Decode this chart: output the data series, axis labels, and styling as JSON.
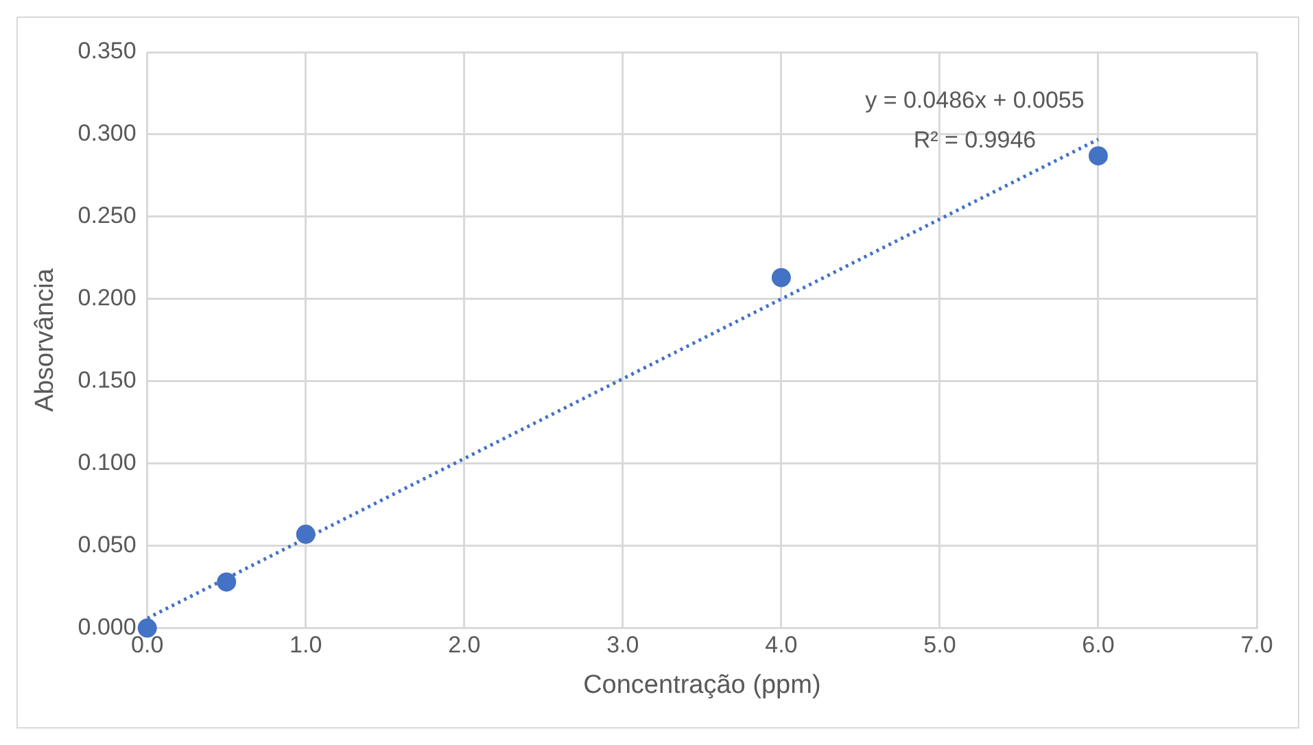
{
  "chart_data": {
    "type": "scatter",
    "xlabel": "Concentração (ppm)",
    "ylabel": "Absorvância",
    "xlim": [
      0,
      7
    ],
    "xticks": [
      {
        "value": 0,
        "label": "0.0"
      },
      {
        "value": 1,
        "label": "1.0"
      },
      {
        "value": 2,
        "label": "2.0"
      },
      {
        "value": 3,
        "label": "3.0"
      },
      {
        "value": 4,
        "label": "4.0"
      },
      {
        "value": 5,
        "label": "5.0"
      },
      {
        "value": 6,
        "label": "6.0"
      },
      {
        "value": 7,
        "label": "7.0"
      }
    ],
    "ylim": [
      0,
      0.35
    ],
    "yticks": [
      {
        "value": 0,
        "label": "0.000"
      },
      {
        "value": 0.05,
        "label": "0.050"
      },
      {
        "value": 0.1,
        "label": "0.100"
      },
      {
        "value": 0.15,
        "label": "0.150"
      },
      {
        "value": 0.2,
        "label": "0.200"
      },
      {
        "value": 0.25,
        "label": "0.250"
      },
      {
        "value": 0.3,
        "label": "0.300"
      },
      {
        "value": 0.35,
        "label": "0.350"
      }
    ],
    "grid": true,
    "legend": false,
    "marker": "circle",
    "series": [
      {
        "color": "#4472c4",
        "x": [
          0,
          0.5,
          1,
          4,
          6
        ],
        "values": [
          0,
          0.028,
          0.057,
          0.213,
          0.287
        ]
      },
      {
        "type": "line",
        "color": "#4472c4",
        "line_style": "dotted",
        "marker": "none",
        "x": [
          0,
          6
        ],
        "values": [
          0.006,
          0.297
        ]
      }
    ],
    "annotations": [
      "y = 0.0486x + 0.0055",
      "R² = 0.9946"
    ]
  }
}
